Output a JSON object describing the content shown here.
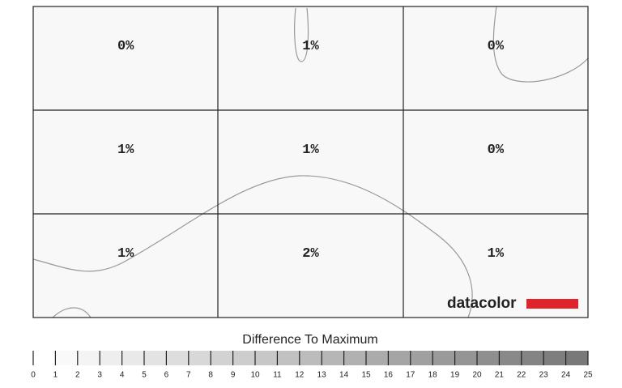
{
  "chart_data": {
    "type": "uniformity",
    "values": [
      [
        0,
        1,
        0
      ],
      [
        1,
        1,
        0
      ],
      [
        1,
        2,
        1
      ]
    ],
    "value_labels": [
      [
        "0%",
        "1%",
        "0%"
      ],
      [
        "1%",
        "1%",
        "0%"
      ],
      [
        "1%",
        "2%",
        "1%"
      ]
    ],
    "brand": "datacolor",
    "scale": {
      "title": "Difference To Maximum",
      "lim": [
        0,
        25
      ],
      "ticks": [
        0,
        1,
        2,
        3,
        4,
        5,
        6,
        7,
        8,
        9,
        10,
        11,
        12,
        13,
        14,
        15,
        16,
        17,
        18,
        19,
        20,
        21,
        22,
        23,
        24,
        25
      ]
    }
  }
}
